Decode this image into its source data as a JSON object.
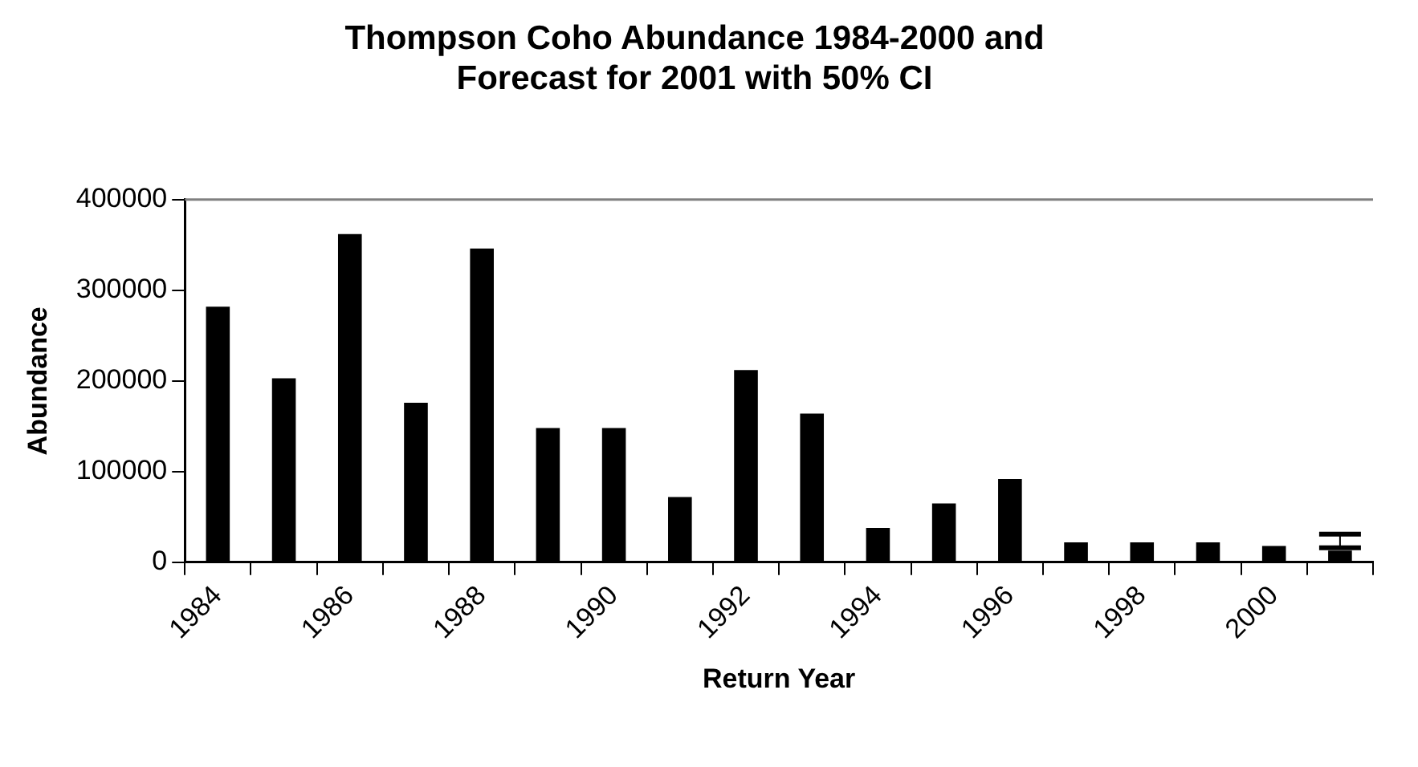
{
  "chart_data": {
    "type": "bar",
    "title": "Thompson Coho Abundance 1984-2000 and Forecast for 2001 with 50% CI",
    "xlabel": "Return Year",
    "ylabel": "Abundance",
    "categories": [
      "1984",
      null,
      "1986",
      null,
      "1988",
      null,
      "1990",
      null,
      "1992",
      null,
      "1994",
      null,
      "1996",
      null,
      "1998",
      null,
      "2000",
      null
    ],
    "values": [
      282000,
      203000,
      362000,
      176000,
      346000,
      148000,
      148000,
      72000,
      212000,
      164000,
      38000,
      65000,
      92000,
      22000,
      22000,
      22000,
      18000,
      13000
    ],
    "errors": [
      null,
      null,
      null,
      null,
      null,
      null,
      null,
      null,
      null,
      null,
      null,
      null,
      null,
      null,
      null,
      null,
      null,
      [
        16000,
        31000
      ]
    ],
    "color": "#000000",
    "ylim": [
      0,
      400000
    ],
    "yticks": [
      0,
      100000,
      200000,
      300000,
      400000
    ],
    "grid": false,
    "legend": false
  }
}
